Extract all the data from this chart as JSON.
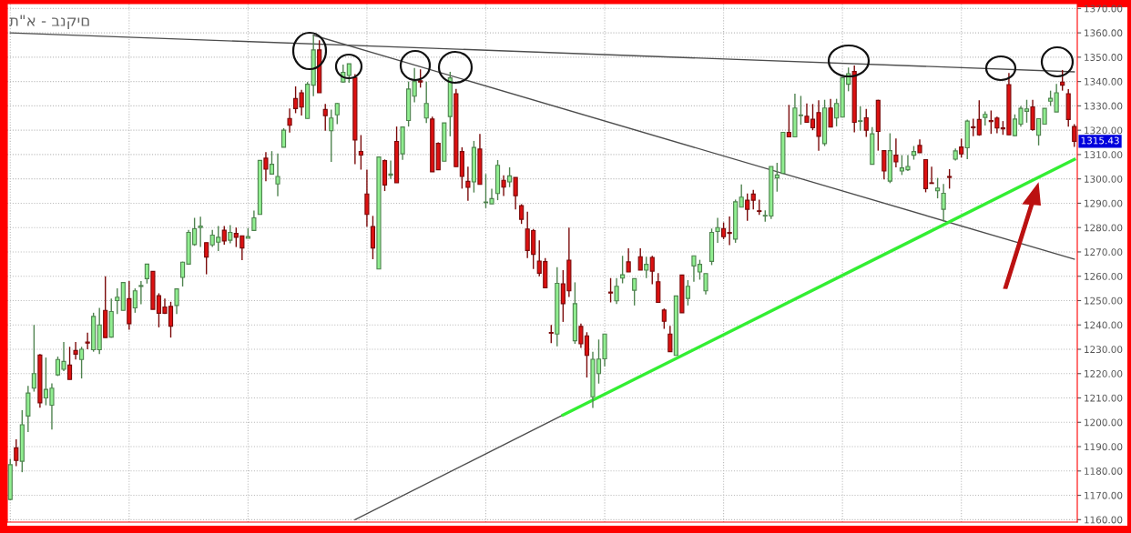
{
  "chart_data": {
    "type": "candlestick",
    "title": "ת\"א - בנקים",
    "categories": [
      null,
      null,
      null,
      null,
      null,
      null,
      null,
      null,
      null,
      null,
      null,
      null,
      null,
      null,
      null,
      null,
      null,
      null,
      null,
      null,
      null,
      null,
      null,
      null,
      null,
      null,
      null,
      null,
      null,
      null,
      null,
      null,
      null,
      null,
      null,
      null,
      null,
      null,
      null,
      null,
      null,
      null,
      null,
      null,
      null,
      null,
      null,
      null,
      null,
      null,
      null,
      null,
      null,
      null,
      null,
      null,
      null,
      null,
      null,
      null,
      null,
      null,
      null,
      null,
      null,
      null,
      null,
      null,
      null,
      null,
      null,
      null,
      null,
      null,
      null,
      null,
      null,
      null,
      null,
      null,
      null,
      null,
      null,
      null,
      null,
      null,
      null,
      null,
      null,
      null,
      null,
      null,
      null,
      null,
      null,
      null,
      null,
      null,
      null,
      null,
      null,
      null,
      null,
      null,
      null,
      null,
      null,
      null,
      null,
      null,
      null,
      null,
      null,
      null,
      null,
      null,
      null,
      null,
      null,
      null,
      null,
      null,
      null,
      null,
      null,
      null,
      null,
      null,
      null,
      null,
      null,
      null,
      null,
      null,
      null,
      null,
      null,
      null,
      null,
      null,
      null,
      null,
      null,
      null,
      null,
      null,
      null,
      null,
      null,
      null,
      null,
      null,
      null,
      null,
      null,
      null,
      null,
      null,
      null,
      null,
      null,
      null,
      null,
      null,
      null,
      null,
      null,
      null,
      null,
      null,
      null,
      null,
      null,
      null,
      null,
      null,
      null,
      null,
      null,
      null
    ],
    "ohlc": [
      [
        1168.3,
        1185,
        1168,
        1182.6
      ],
      [
        1189.5,
        1193,
        1182,
        1184.3
      ],
      [
        1184,
        1205,
        1179.5,
        1199
      ],
      [
        1202.6,
        1215,
        1196,
        1212
      ],
      [
        1214,
        1240,
        1212.6,
        1220
      ],
      [
        1227.6,
        1228,
        1206,
        1208
      ],
      [
        1210,
        1226.6,
        1207,
        1213.5
      ],
      [
        1207,
        1216,
        1197,
        1214
      ],
      [
        1219.5,
        1227,
        1219,
        1225.8
      ],
      [
        1221.8,
        1233,
        1221,
        1225
      ],
      [
        1223.5,
        1231,
        1217.6,
        1217.6
      ],
      [
        1229.5,
        1233,
        1225.8,
        1228
      ],
      [
        1225.8,
        1231,
        1218,
        1230
      ],
      [
        1233,
        1236.8,
        1230,
        1232.5
      ],
      [
        1229.8,
        1245,
        1229,
        1243.5
      ],
      [
        1229.8,
        1247,
        1228,
        1240
      ],
      [
        1246,
        1260,
        1234.8,
        1234.8
      ],
      [
        1235,
        1250.8,
        1234.8,
        1245.5
      ],
      [
        1250,
        1255,
        1244.5,
        1251.4
      ],
      [
        1246,
        1257.4,
        1246,
        1257.4
      ],
      [
        1250.8,
        1258,
        1238,
        1240.5
      ],
      [
        1247,
        1255,
        1245,
        1254
      ],
      [
        1255.8,
        1258,
        1248.5,
        1256.2
      ],
      [
        1259,
        1265,
        1257,
        1265
      ],
      [
        1262,
        1262,
        1246.4,
        1246.4
      ],
      [
        1252,
        1253,
        1239,
        1244.8
      ],
      [
        1247.4,
        1250.8,
        1244.5,
        1244.8
      ],
      [
        1247.6,
        1249.5,
        1234.8,
        1239.5
      ],
      [
        1248,
        1254.8,
        1244.5,
        1254.8
      ],
      [
        1259.5,
        1266,
        1255.8,
        1265.8
      ],
      [
        1265,
        1279,
        1265,
        1278
      ],
      [
        1273,
        1284,
        1272.5,
        1279.5
      ],
      [
        1280,
        1284.5,
        1272,
        1280.6
      ],
      [
        1273.8,
        1273.8,
        1260.8,
        1267.9
      ],
      [
        1272.9,
        1279,
        1272,
        1276.9
      ],
      [
        1274,
        1280.6,
        1270.4,
        1276
      ],
      [
        1278.9,
        1280.6,
        1273,
        1274.5
      ],
      [
        1274.8,
        1281,
        1273.5,
        1278
      ],
      [
        1277.6,
        1280,
        1272,
        1276
      ],
      [
        1276.6,
        1276.6,
        1266.6,
        1271.6
      ],
      [
        1275.6,
        1279.8,
        1275.6,
        1276.3
      ],
      [
        1278.8,
        1287,
        1278.8,
        1284
      ],
      [
        1285.4,
        1307.6,
        1285.4,
        1307.6
      ],
      [
        1308.5,
        1311,
        1299,
        1304
      ],
      [
        1302,
        1311.4,
        1302,
        1306
      ],
      [
        1297.9,
        1310.4,
        1292.9,
        1301
      ],
      [
        1313,
        1320.8,
        1313,
        1320
      ],
      [
        1324.8,
        1328.9,
        1319,
        1322
      ],
      [
        1333,
        1338,
        1327,
        1328.9
      ],
      [
        1335.4,
        1336.6,
        1326,
        1329.5
      ],
      [
        1324.8,
        1339.8,
        1324.8,
        1338.9
      ],
      [
        1338.5,
        1359,
        1334,
        1353
      ],
      [
        1353,
        1357,
        1335.4,
        1335.4
      ],
      [
        1328.5,
        1330.8,
        1319.8,
        1326
      ],
      [
        1319.8,
        1328.5,
        1307,
        1325
      ],
      [
        1326.3,
        1331.3,
        1322.5,
        1331
      ],
      [
        1339.8,
        1347,
        1339.5,
        1343.8
      ],
      [
        1342.5,
        1347.3,
        1339.5,
        1347.3
      ],
      [
        1341.6,
        1343,
        1306,
        1316
      ],
      [
        1311.3,
        1318,
        1303.8,
        1309.8
      ],
      [
        1293.8,
        1303.8,
        1280.4,
        1285.4
      ],
      [
        1280.4,
        1284.8,
        1267,
        1271.6
      ],
      [
        1263,
        1309,
        1263,
        1309
      ],
      [
        1307.5,
        1308,
        1295,
        1297.5
      ],
      [
        1301.5,
        1307.5,
        1300,
        1302
      ],
      [
        1315.4,
        1321.5,
        1298.4,
        1298.4
      ],
      [
        1310.3,
        1321.3,
        1307.8,
        1321.3
      ],
      [
        1324,
        1340,
        1321.5,
        1336.9
      ],
      [
        1334,
        1345.6,
        1331.5,
        1340
      ],
      [
        1340.3,
        1345,
        1337.5,
        1339.8
      ],
      [
        1325,
        1340,
        1323,
        1331
      ],
      [
        1324.6,
        1325.6,
        1302.9,
        1302.9
      ],
      [
        1314.6,
        1315,
        1303.75,
        1303.75
      ],
      [
        1307.25,
        1323,
        1307.25,
        1323
      ],
      [
        1325.6,
        1344,
        1317.5,
        1341.5
      ],
      [
        1335,
        1337,
        1305,
        1305
      ],
      [
        1311.25,
        1313,
        1296,
        1301
      ],
      [
        1299,
        1305,
        1291,
        1296.5
      ],
      [
        1298.75,
        1315.6,
        1294.4,
        1312.9
      ],
      [
        1312.25,
        1318.5,
        1297.75,
        1297.75
      ],
      [
        1290.25,
        1302,
        1288,
        1290.5
      ],
      [
        1289.75,
        1296,
        1289.75,
        1291.9
      ],
      [
        1294,
        1307.75,
        1291.25,
        1305.6
      ],
      [
        1299.4,
        1301.5,
        1293,
        1296.6
      ],
      [
        1298.75,
        1304.75,
        1296.6,
        1301.25
      ],
      [
        1300.6,
        1300.6,
        1287.5,
        1293.1
      ],
      [
        1289,
        1289.6,
        1281.5,
        1283.4
      ],
      [
        1279.4,
        1286.5,
        1267.5,
        1270.6
      ],
      [
        1278.75,
        1279.4,
        1263,
        1269
      ],
      [
        1266.25,
        1274.75,
        1260,
        1261.25
      ],
      [
        1266,
        1267.5,
        1255.25,
        1255.25
      ],
      [
        1236.9,
        1240,
        1232.5,
        1236.6
      ],
      [
        1236.25,
        1263.75,
        1231.25,
        1257.1
      ],
      [
        1256.9,
        1262.5,
        1241.25,
        1248.75
      ],
      [
        1266.6,
        1280,
        1251.5,
        1254
      ],
      [
        1233.5,
        1257.5,
        1232.25,
        1248.75
      ],
      [
        1239.4,
        1240.6,
        1230.6,
        1232.25
      ],
      [
        1235.5,
        1237,
        1218.4,
        1227.5
      ],
      [
        1210.5,
        1229,
        1205.9,
        1225.9
      ],
      [
        1220,
        1234,
        1215.9,
        1226
      ],
      [
        1226.1,
        1236.25,
        1223,
        1236.25
      ],
      [
        1253.5,
        1259.25,
        1249.25,
        1253.1
      ],
      [
        1249.9,
        1259.25,
        1248.6,
        1255.9
      ],
      [
        1259.25,
        1268.4,
        1257.1,
        1260.6
      ],
      [
        1265.9,
        1271.5,
        1261.75,
        1261.75
      ],
      [
        1254.25,
        1259,
        1248,
        1259
      ],
      [
        1268,
        1271.5,
        1262.5,
        1262.5
      ],
      [
        1262.5,
        1268,
        1259.25,
        1264.9
      ],
      [
        1267.75,
        1268.4,
        1256.75,
        1262.1
      ],
      [
        1257.75,
        1261.25,
        1249.25,
        1249.25
      ],
      [
        1246.1,
        1246.75,
        1238.4,
        1241.5
      ],
      [
        1236.25,
        1239.6,
        1229,
        1229
      ],
      [
        1227.5,
        1251.9,
        1227.5,
        1251.9
      ],
      [
        1260.5,
        1260.5,
        1245,
        1245
      ],
      [
        1250.9,
        1258.4,
        1248,
        1255.9
      ],
      [
        1264.25,
        1268.4,
        1257.75,
        1268.4
      ],
      [
        1261.75,
        1266.75,
        1258.6,
        1264.9
      ],
      [
        1254,
        1261.1,
        1252.5,
        1261.1
      ],
      [
        1266.1,
        1279.6,
        1264.6,
        1278
      ],
      [
        1278.4,
        1284,
        1273.75,
        1280
      ],
      [
        1279.6,
        1282.1,
        1275.25,
        1276.25
      ],
      [
        1278,
        1284.6,
        1272.75,
        1277.6
      ],
      [
        1275.25,
        1291.5,
        1273.75,
        1290.6
      ],
      [
        1288.4,
        1297.75,
        1288.4,
        1292.5
      ],
      [
        1291.25,
        1294,
        1282.75,
        1287.5
      ],
      [
        1293.75,
        1295.5,
        1287.5,
        1291.25
      ],
      [
        1286.9,
        1291.5,
        1285.25,
        1286.6
      ],
      [
        1284.75,
        1287.1,
        1282.4,
        1285
      ],
      [
        1284.75,
        1305.1,
        1283.5,
        1305.1
      ],
      [
        1300.4,
        1306.6,
        1294.75,
        1301.6
      ],
      [
        1302.25,
        1319.1,
        1302.25,
        1319.1
      ],
      [
        1319.1,
        1330.4,
        1317.25,
        1317.25
      ],
      [
        1317.25,
        1335,
        1317.25,
        1329.1
      ],
      [
        1326,
        1334.1,
        1322.25,
        1326.25
      ],
      [
        1325.75,
        1331,
        1323.25,
        1323.25
      ],
      [
        1324.5,
        1330.75,
        1320,
        1321
      ],
      [
        1327.25,
        1332.25,
        1311.6,
        1317.5
      ],
      [
        1314.5,
        1332.5,
        1313.5,
        1329.1
      ],
      [
        1329.1,
        1332.9,
        1321.25,
        1321.25
      ],
      [
        1325,
        1332.9,
        1321.6,
        1331
      ],
      [
        1325.4,
        1341.6,
        1325.4,
        1341.6
      ],
      [
        1338.9,
        1345.75,
        1336,
        1343.25
      ],
      [
        1344.1,
        1346.6,
        1319.1,
        1323.25
      ],
      [
        1323.6,
        1329.75,
        1319.75,
        1323.9
      ],
      [
        1325.1,
        1328.75,
        1317.25,
        1320
      ],
      [
        1306,
        1321.25,
        1306,
        1318.5
      ],
      [
        1332.25,
        1332.5,
        1311.6,
        1319.5
      ],
      [
        1311.6,
        1311.6,
        1299.75,
        1303.25
      ],
      [
        1299.1,
        1318.75,
        1298.25,
        1311.6
      ],
      [
        1309.75,
        1316.6,
        1304.75,
        1307
      ],
      [
        1303.25,
        1309.75,
        1301.6,
        1304.5
      ],
      [
        1303.75,
        1309.75,
        1303.25,
        1305.1
      ],
      [
        1309.75,
        1313.5,
        1307.9,
        1311.25
      ],
      [
        1313.75,
        1316.25,
        1310.75,
        1310.75
      ],
      [
        1307.9,
        1307.9,
        1294.5,
        1296
      ],
      [
        1298.4,
        1305,
        1298.1,
        1298.1
      ],
      [
        1295.1,
        1300.4,
        1292,
        1296.25
      ],
      [
        1287.5,
        1297.9,
        1282.5,
        1294.1
      ],
      [
        1301,
        1304,
        1296,
        1300.6
      ],
      [
        1308.1,
        1312.5,
        1307.5,
        1311.5
      ],
      [
        1313.1,
        1316.5,
        1308.75,
        1310.25
      ],
      [
        1312.75,
        1324.4,
        1308.1,
        1323.75
      ],
      [
        1321.4,
        1324.75,
        1317.5,
        1321
      ],
      [
        1324.4,
        1332.25,
        1317.75,
        1318.1
      ],
      [
        1325.25,
        1327.75,
        1321.9,
        1326.5
      ],
      [
        1324,
        1328.1,
        1318.5,
        1323.5
      ],
      [
        1325,
        1325.6,
        1318.75,
        1320.9
      ],
      [
        1321,
        1323.75,
        1318.1,
        1320.5
      ],
      [
        1338.75,
        1343.5,
        1318.1,
        1318.1
      ],
      [
        1317.75,
        1326.5,
        1317.5,
        1324.6
      ],
      [
        1322.5,
        1330,
        1321.5,
        1329
      ],
      [
        1327.75,
        1332.5,
        1323.1,
        1328.75
      ],
      [
        1329.6,
        1332.5,
        1319.75,
        1320.25
      ],
      [
        1317.9,
        1324.75,
        1313.75,
        1324.75
      ],
      [
        1322.5,
        1329,
        1322.5,
        1329
      ],
      [
        1331.9,
        1336.25,
        1330,
        1333.1
      ],
      [
        1327.5,
        1339,
        1327.5,
        1335.4
      ],
      [
        1339.75,
        1344.75,
        1336.25,
        1338.5
      ],
      [
        1335,
        1336.9,
        1321.5,
        1324.4
      ],
      [
        1321.5,
        1322.5,
        1313.1,
        1315.43
      ]
    ],
    "colors": [
      "#90ee90",
      "#dd1111",
      "#90ee90",
      "#90ee90",
      "#90ee90",
      "#dd1111",
      "#90ee90",
      "#90ee90",
      "#90ee90",
      "#90ee90",
      "#dd1111",
      "#dd1111",
      "#90ee90",
      "#dd1111",
      "#90ee90",
      "#90ee90",
      "#dd1111",
      "#90ee90",
      "#90ee90",
      "#90ee90",
      "#dd1111",
      "#90ee90",
      "#90ee90",
      "#90ee90",
      "#dd1111",
      "#dd1111",
      "#dd1111",
      "#dd1111",
      "#90ee90",
      "#90ee90",
      "#90ee90",
      "#90ee90",
      "#90ee90",
      "#dd1111",
      "#90ee90",
      "#90ee90",
      "#dd1111",
      "#90ee90",
      "#dd1111",
      "#dd1111",
      "#90ee90",
      "#90ee90",
      "#90ee90",
      "#dd1111",
      "#90ee90",
      "#90ee90",
      "#90ee90",
      "#dd1111",
      "#dd1111",
      "#dd1111",
      "#90ee90",
      "#90ee90",
      "#dd1111",
      "#dd1111",
      "#90ee90",
      "#90ee90",
      "#90ee90",
      "#90ee90",
      "#dd1111",
      "#dd1111",
      "#dd1111",
      "#dd1111",
      "#90ee90",
      "#dd1111",
      "#90ee90",
      "#dd1111",
      "#90ee90",
      "#90ee90",
      "#90ee90",
      "#dd1111",
      "#90ee90",
      "#dd1111",
      "#dd1111",
      "#90ee90",
      "#90ee90",
      "#dd1111",
      "#dd1111",
      "#dd1111",
      "#90ee90",
      "#dd1111",
      "#90ee90",
      "#90ee90",
      "#90ee90",
      "#dd1111",
      "#90ee90",
      "#dd1111",
      "#dd1111",
      "#dd1111",
      "#dd1111",
      "#dd1111",
      "#dd1111",
      "#dd1111",
      "#90ee90",
      "#dd1111",
      "#dd1111",
      "#90ee90",
      "#dd1111",
      "#dd1111",
      "#90ee90",
      "#90ee90",
      "#90ee90",
      "#dd1111",
      "#90ee90",
      "#90ee90",
      "#dd1111",
      "#90ee90",
      "#dd1111",
      "#90ee90",
      "#dd1111",
      "#dd1111",
      "#dd1111",
      "#dd1111",
      "#90ee90",
      "#dd1111",
      "#90ee90",
      "#90ee90",
      "#90ee90",
      "#90ee90",
      "#90ee90",
      "#90ee90",
      "#dd1111",
      "#dd1111",
      "#90ee90",
      "#90ee90",
      "#dd1111",
      "#dd1111",
      "#dd1111",
      "#90ee90",
      "#90ee90",
      "#90ee90",
      "#90ee90",
      "#dd1111",
      "#90ee90",
      "#90ee90",
      "#dd1111",
      "#dd1111",
      "#dd1111",
      "#90ee90",
      "#dd1111",
      "#90ee90",
      "#90ee90",
      "#90ee90",
      "#dd1111",
      "#90ee90",
      "#dd1111",
      "#90ee90",
      "#dd1111",
      "#dd1111",
      "#90ee90",
      "#dd1111",
      "#90ee90",
      "#90ee90",
      "#90ee90",
      "#dd1111",
      "#dd1111",
      "#dd1111",
      "#90ee90",
      "#90ee90",
      "#dd1111",
      "#90ee90",
      "#dd1111",
      "#90ee90",
      "#dd1111",
      "#dd1111",
      "#90ee90",
      "#dd1111",
      "#dd1111",
      "#dd1111",
      "#dd1111",
      "#90ee90",
      "#90ee90",
      "#90ee90",
      "#dd1111",
      "#90ee90",
      "#90ee90",
      "#90ee90",
      "#90ee90",
      "#dd1111",
      "#dd1111",
      "#dd1111"
    ],
    "series": [
      {
        "type": "line",
        "color": "#4d4d4d",
        "values": [
          1360,
          null,
          null,
          null,
          null,
          null,
          null,
          null,
          null,
          null,
          null,
          null,
          null,
          null,
          null,
          null,
          null,
          null,
          null,
          null,
          null,
          null,
          null,
          null,
          null,
          null,
          null,
          null,
          null,
          null,
          null,
          null,
          null,
          null,
          null,
          null,
          null,
          null,
          null,
          null,
          null,
          null,
          null,
          null,
          null,
          null,
          null,
          null,
          null,
          null,
          null,
          null,
          null,
          null,
          null,
          null,
          null,
          null,
          null,
          null,
          null,
          null,
          null,
          null,
          null,
          null,
          null,
          null,
          null,
          null,
          null,
          null,
          null,
          null,
          null,
          null,
          null,
          null,
          null,
          null,
          null,
          null,
          null,
          null,
          null,
          null,
          null,
          null,
          null,
          null,
          null,
          null,
          null,
          null,
          null,
          null,
          null,
          null,
          null,
          null,
          null,
          null,
          null,
          null,
          null,
          null,
          null,
          null,
          null,
          null,
          null,
          null,
          null,
          null,
          null,
          null,
          null,
          null,
          null,
          null,
          null,
          null,
          null,
          null,
          null,
          null,
          null,
          null,
          null,
          null,
          null,
          null,
          null,
          null,
          null,
          null,
          null,
          null,
          null,
          null,
          null,
          null,
          null,
          null,
          null,
          null,
          null,
          null,
          null,
          null,
          null,
          null,
          null,
          null,
          null,
          null,
          null,
          null,
          null,
          null,
          null,
          null,
          null,
          null,
          null,
          null,
          null,
          null,
          null,
          null,
          null,
          null,
          null,
          null,
          null,
          null,
          null,
          null,
          null,
          1344
        ]
      },
      {
        "type": "line",
        "color": "#4d4d4d",
        "values": [
          null,
          null,
          null,
          null,
          null,
          null,
          null,
          null,
          null,
          null,
          null,
          null,
          null,
          null,
          null,
          null,
          null,
          null,
          null,
          null,
          null,
          null,
          null,
          null,
          null,
          null,
          null,
          null,
          null,
          null,
          null,
          null,
          null,
          null,
          null,
          null,
          null,
          null,
          null,
          null,
          null,
          null,
          null,
          null,
          null,
          null,
          null,
          null,
          null,
          null,
          null,
          1359,
          null,
          null,
          null,
          null,
          null,
          null,
          null,
          null,
          null,
          null,
          null,
          null,
          null,
          null,
          null,
          null,
          null,
          null,
          null,
          null,
          null,
          null,
          null,
          null,
          null,
          null,
          null,
          null,
          null,
          null,
          null,
          null,
          null,
          null,
          null,
          null,
          null,
          null,
          null,
          null,
          null,
          null,
          null,
          null,
          null,
          null,
          null,
          null,
          null,
          null,
          null,
          null,
          null,
          null,
          null,
          null,
          null,
          null,
          null,
          null,
          null,
          null,
          null,
          null,
          null,
          null,
          null,
          null,
          null,
          null,
          null,
          null,
          null,
          null,
          null,
          null,
          null,
          null,
          null,
          null,
          null,
          null,
          null,
          null,
          null,
          null,
          null,
          null,
          null,
          null,
          null,
          null,
          null,
          null,
          null,
          null,
          null,
          null,
          null,
          null,
          null,
          null,
          null,
          null,
          null,
          null,
          null,
          null,
          null,
          null,
          null,
          null,
          null,
          null,
          null,
          null,
          null,
          null,
          null,
          null,
          null,
          null,
          null,
          null,
          null,
          null,
          null,
          1267
        ]
      },
      {
        "type": "line",
        "color": "#4d4d4d",
        "values": [
          null,
          null,
          null,
          null,
          null,
          null,
          null,
          null,
          null,
          null,
          null,
          null,
          null,
          null,
          null,
          null,
          null,
          null,
          null,
          null,
          null,
          null,
          null,
          null,
          null,
          null,
          null,
          null,
          null,
          null,
          null,
          null,
          null,
          null,
          null,
          null,
          null,
          null,
          null,
          null,
          null,
          null,
          null,
          null,
          null,
          null,
          null,
          null,
          null,
          null,
          null,
          null,
          null,
          null,
          null,
          null,
          null,
          null,
          1160,
          null,
          null,
          null,
          null,
          null,
          null,
          null,
          null,
          null,
          null,
          null,
          null,
          null,
          null,
          null,
          null,
          null,
          null,
          null,
          null,
          null,
          null,
          null,
          null,
          null,
          null,
          null,
          null,
          null,
          null,
          null,
          null,
          null,
          null,
          1203,
          null,
          null,
          null,
          null,
          null,
          null,
          null,
          null,
          null,
          null,
          null,
          null,
          null,
          null,
          null,
          null,
          null,
          null,
          null,
          null,
          null,
          null,
          null,
          null,
          null,
          null,
          null,
          null,
          null,
          null,
          null,
          null,
          null,
          null,
          null,
          null,
          null,
          null,
          null,
          null,
          null,
          null,
          null,
          null,
          null,
          null,
          null,
          null,
          null,
          null,
          null,
          null,
          null,
          null,
          null,
          null,
          null,
          null,
          null,
          null,
          null,
          null,
          null,
          null,
          null,
          null,
          null,
          null,
          null,
          null,
          null,
          null,
          null,
          null,
          null,
          null,
          null,
          null,
          null,
          null,
          null,
          null,
          null,
          null,
          null,
          null
        ]
      },
      {
        "type": "line",
        "color": "#33ee33",
        "values": [
          null,
          null,
          null,
          null,
          null,
          null,
          null,
          null,
          null,
          null,
          null,
          null,
          null,
          null,
          null,
          null,
          null,
          null,
          null,
          null,
          null,
          null,
          null,
          null,
          null,
          null,
          null,
          null,
          null,
          null,
          null,
          null,
          null,
          null,
          null,
          null,
          null,
          null,
          null,
          null,
          null,
          null,
          null,
          null,
          null,
          null,
          null,
          null,
          null,
          null,
          null,
          null,
          null,
          null,
          null,
          null,
          null,
          null,
          null,
          null,
          null,
          null,
          null,
          null,
          null,
          null,
          null,
          null,
          null,
          null,
          null,
          null,
          null,
          null,
          null,
          null,
          null,
          null,
          null,
          null,
          null,
          null,
          null,
          null,
          null,
          null,
          null,
          null,
          null,
          null,
          null,
          null,
          null,
          1203,
          null,
          null,
          null,
          null,
          null,
          null,
          null,
          null,
          null,
          null,
          null,
          null,
          null,
          null,
          null,
          null,
          null,
          null,
          null,
          null,
          null,
          null,
          null,
          null,
          null,
          null,
          null,
          null,
          null,
          null,
          null,
          null,
          null,
          null,
          null,
          null,
          null,
          null,
          null,
          null,
          null,
          null,
          null,
          null,
          null,
          null,
          null,
          null,
          null,
          null,
          null,
          null,
          null,
          null,
          null,
          null,
          null,
          null,
          null,
          null,
          null,
          null,
          null,
          null,
          null,
          null,
          null,
          null,
          null,
          null,
          null,
          null,
          null,
          null,
          null,
          null,
          null,
          null,
          null,
          null,
          null,
          null,
          null,
          null,
          null,
          1308
        ]
      }
    ],
    "annotations": [
      "1315.43"
    ],
    "ylim": [
      1159,
      1372
    ],
    "yticks": [
      {
        "value": 1160,
        "label": "1160.00"
      },
      {
        "value": 1170,
        "label": "1170.00"
      },
      {
        "value": 1180,
        "label": "1180.00"
      },
      {
        "value": 1190,
        "label": "1190.00"
      },
      {
        "value": 1200,
        "label": "1200.00"
      },
      {
        "value": 1210,
        "label": "1210.00"
      },
      {
        "value": 1220,
        "label": "1220.00"
      },
      {
        "value": 1230,
        "label": "1230.00"
      },
      {
        "value": 1240,
        "label": "1240.00"
      },
      {
        "value": 1250,
        "label": "1250.00"
      },
      {
        "value": 1260,
        "label": "1260.00"
      },
      {
        "value": 1270,
        "label": "1270.00"
      },
      {
        "value": 1280,
        "label": "1280.00"
      },
      {
        "value": 1290,
        "label": "1290.00"
      },
      {
        "value": 1300,
        "label": "1300.00"
      },
      {
        "value": 1310,
        "label": "1310.00"
      },
      {
        "value": 1320,
        "label": "1320.00"
      },
      {
        "value": 1330,
        "label": "1330.00"
      },
      {
        "value": 1340,
        "label": "1340.00"
      },
      {
        "value": 1350,
        "label": "1350.00"
      },
      {
        "value": 1360,
        "label": "1360.00"
      },
      {
        "value": 1370,
        "label": "1370.00"
      }
    ],
    "grid": true
  }
}
